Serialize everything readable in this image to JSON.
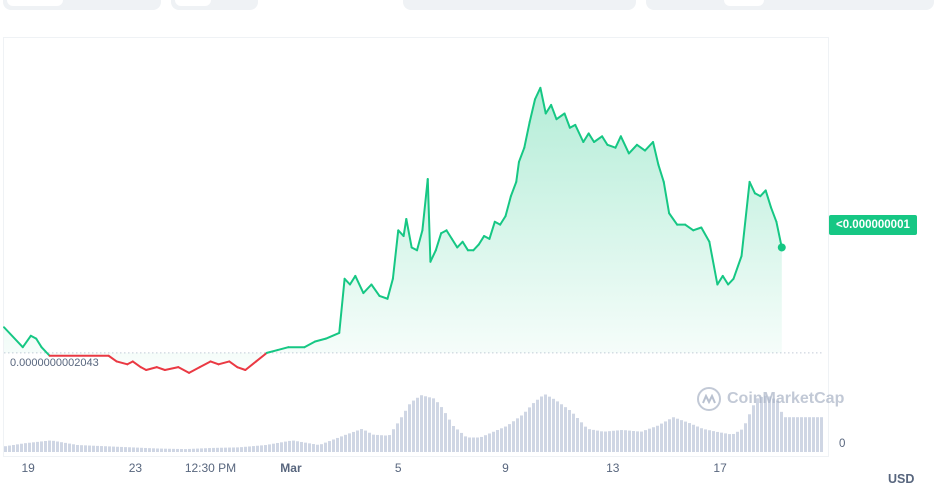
{
  "chart_data": {
    "type": "line",
    "price_label": "<0.000000001",
    "baseline_label": "0.0000000002043",
    "volume_zero_label": "0",
    "currency": "USD",
    "watermark": "CoinMarketCap",
    "colors": {
      "up": "#16c784",
      "down": "#ea3943",
      "volume": "#cfd6e4",
      "baseline": "#cfd6e4"
    },
    "x_ticks": [
      {
        "label": "19",
        "x": 0.2,
        "bold": false
      },
      {
        "label": "23",
        "x": 4.2,
        "bold": false
      },
      {
        "label": "12:30 PM",
        "x": 7.0,
        "bold": false
      },
      {
        "label": "Mar",
        "x": 10.0,
        "bold": true
      },
      {
        "label": "5",
        "x": 14.0,
        "bold": false
      },
      {
        "label": "9",
        "x": 18.0,
        "bold": false
      },
      {
        "label": "13",
        "x": 22.0,
        "bold": false
      },
      {
        "label": "17",
        "x": 26.0,
        "bold": false
      }
    ],
    "x_range": [
      -0.7,
      29.8
    ],
    "y_range": [
      0.0,
      1.0
    ],
    "baseline_value": 0.06,
    "price_series": [
      [
        -0.7,
        0.15
      ],
      [
        0.0,
        0.08
      ],
      [
        0.3,
        0.12
      ],
      [
        0.5,
        0.11
      ],
      [
        0.7,
        0.08
      ],
      [
        1.0,
        0.05
      ],
      [
        3.2,
        0.05
      ],
      [
        3.5,
        0.03
      ],
      [
        3.9,
        0.02
      ],
      [
        4.1,
        0.03
      ],
      [
        4.4,
        0.01
      ],
      [
        4.6,
        0.0
      ],
      [
        5.0,
        0.01
      ],
      [
        5.3,
        0.0
      ],
      [
        5.8,
        0.01
      ],
      [
        6.2,
        -0.01
      ],
      [
        6.6,
        0.01
      ],
      [
        7.0,
        0.03
      ],
      [
        7.3,
        0.02
      ],
      [
        7.7,
        0.03
      ],
      [
        8.0,
        0.01
      ],
      [
        8.3,
        0.0
      ],
      [
        8.7,
        0.03
      ],
      [
        9.1,
        0.06
      ],
      [
        9.5,
        0.07
      ],
      [
        9.9,
        0.08
      ],
      [
        10.5,
        0.08
      ],
      [
        10.9,
        0.1
      ],
      [
        11.3,
        0.11
      ],
      [
        11.8,
        0.13
      ],
      [
        12.0,
        0.32
      ],
      [
        12.2,
        0.3
      ],
      [
        12.4,
        0.33
      ],
      [
        12.7,
        0.27
      ],
      [
        13.0,
        0.3
      ],
      [
        13.3,
        0.26
      ],
      [
        13.6,
        0.25
      ],
      [
        13.8,
        0.32
      ],
      [
        14.0,
        0.49
      ],
      [
        14.2,
        0.47
      ],
      [
        14.3,
        0.53
      ],
      [
        14.5,
        0.43
      ],
      [
        14.7,
        0.42
      ],
      [
        14.9,
        0.49
      ],
      [
        15.1,
        0.67
      ],
      [
        15.2,
        0.38
      ],
      [
        15.4,
        0.42
      ],
      [
        15.6,
        0.48
      ],
      [
        15.8,
        0.49
      ],
      [
        16.0,
        0.46
      ],
      [
        16.2,
        0.43
      ],
      [
        16.4,
        0.45
      ],
      [
        16.6,
        0.42
      ],
      [
        16.8,
        0.42
      ],
      [
        17.0,
        0.44
      ],
      [
        17.2,
        0.47
      ],
      [
        17.4,
        0.46
      ],
      [
        17.6,
        0.52
      ],
      [
        17.8,
        0.51
      ],
      [
        18.0,
        0.54
      ],
      [
        18.2,
        0.61
      ],
      [
        18.4,
        0.66
      ],
      [
        18.5,
        0.73
      ],
      [
        18.7,
        0.78
      ],
      [
        18.9,
        0.87
      ],
      [
        19.1,
        0.95
      ],
      [
        19.3,
        0.99
      ],
      [
        19.5,
        0.9
      ],
      [
        19.7,
        0.93
      ],
      [
        19.9,
        0.88
      ],
      [
        20.2,
        0.9
      ],
      [
        20.4,
        0.85
      ],
      [
        20.6,
        0.86
      ],
      [
        20.9,
        0.8
      ],
      [
        21.1,
        0.83
      ],
      [
        21.3,
        0.8
      ],
      [
        21.6,
        0.82
      ],
      [
        21.8,
        0.79
      ],
      [
        22.1,
        0.78
      ],
      [
        22.3,
        0.82
      ],
      [
        22.6,
        0.76
      ],
      [
        22.9,
        0.79
      ],
      [
        23.2,
        0.77
      ],
      [
        23.5,
        0.8
      ],
      [
        23.7,
        0.72
      ],
      [
        23.9,
        0.66
      ],
      [
        24.1,
        0.55
      ],
      [
        24.4,
        0.51
      ],
      [
        24.7,
        0.51
      ],
      [
        25.0,
        0.49
      ],
      [
        25.3,
        0.5
      ],
      [
        25.6,
        0.45
      ],
      [
        25.9,
        0.3
      ],
      [
        26.1,
        0.33
      ],
      [
        26.3,
        0.3
      ],
      [
        26.5,
        0.32
      ],
      [
        26.8,
        0.4
      ],
      [
        27.1,
        0.66
      ],
      [
        27.3,
        0.62
      ],
      [
        27.5,
        0.61
      ],
      [
        27.7,
        0.63
      ],
      [
        27.9,
        0.57
      ],
      [
        28.1,
        0.52
      ],
      [
        28.3,
        0.43
      ]
    ],
    "volume_series": [
      [
        -0.7,
        0.1
      ],
      [
        0.0,
        0.15
      ],
      [
        1.0,
        0.2
      ],
      [
        2.0,
        0.12
      ],
      [
        3.0,
        0.1
      ],
      [
        4.0,
        0.08
      ],
      [
        5.0,
        0.06
      ],
      [
        6.0,
        0.05
      ],
      [
        7.0,
        0.07
      ],
      [
        8.0,
        0.08
      ],
      [
        9.0,
        0.12
      ],
      [
        10.0,
        0.2
      ],
      [
        11.0,
        0.12
      ],
      [
        12.0,
        0.3
      ],
      [
        12.6,
        0.4
      ],
      [
        13.0,
        0.3
      ],
      [
        13.6,
        0.28
      ],
      [
        14.0,
        0.55
      ],
      [
        14.4,
        0.85
      ],
      [
        14.8,
        0.98
      ],
      [
        15.3,
        0.92
      ],
      [
        15.6,
        0.75
      ],
      [
        16.0,
        0.45
      ],
      [
        16.5,
        0.25
      ],
      [
        17.0,
        0.25
      ],
      [
        17.5,
        0.35
      ],
      [
        18.0,
        0.45
      ],
      [
        18.6,
        0.65
      ],
      [
        19.0,
        0.85
      ],
      [
        19.4,
        1.0
      ],
      [
        19.8,
        0.9
      ],
      [
        20.4,
        0.7
      ],
      [
        21.0,
        0.4
      ],
      [
        21.6,
        0.35
      ],
      [
        22.3,
        0.38
      ],
      [
        23.0,
        0.35
      ],
      [
        23.6,
        0.45
      ],
      [
        24.2,
        0.6
      ],
      [
        24.8,
        0.5
      ],
      [
        25.3,
        0.4
      ],
      [
        25.8,
        0.35
      ],
      [
        26.4,
        0.3
      ],
      [
        26.8,
        0.4
      ],
      [
        27.3,
        0.92
      ],
      [
        27.7,
        0.98
      ],
      [
        28.1,
        0.88
      ],
      [
        28.3,
        0.6
      ]
    ]
  }
}
